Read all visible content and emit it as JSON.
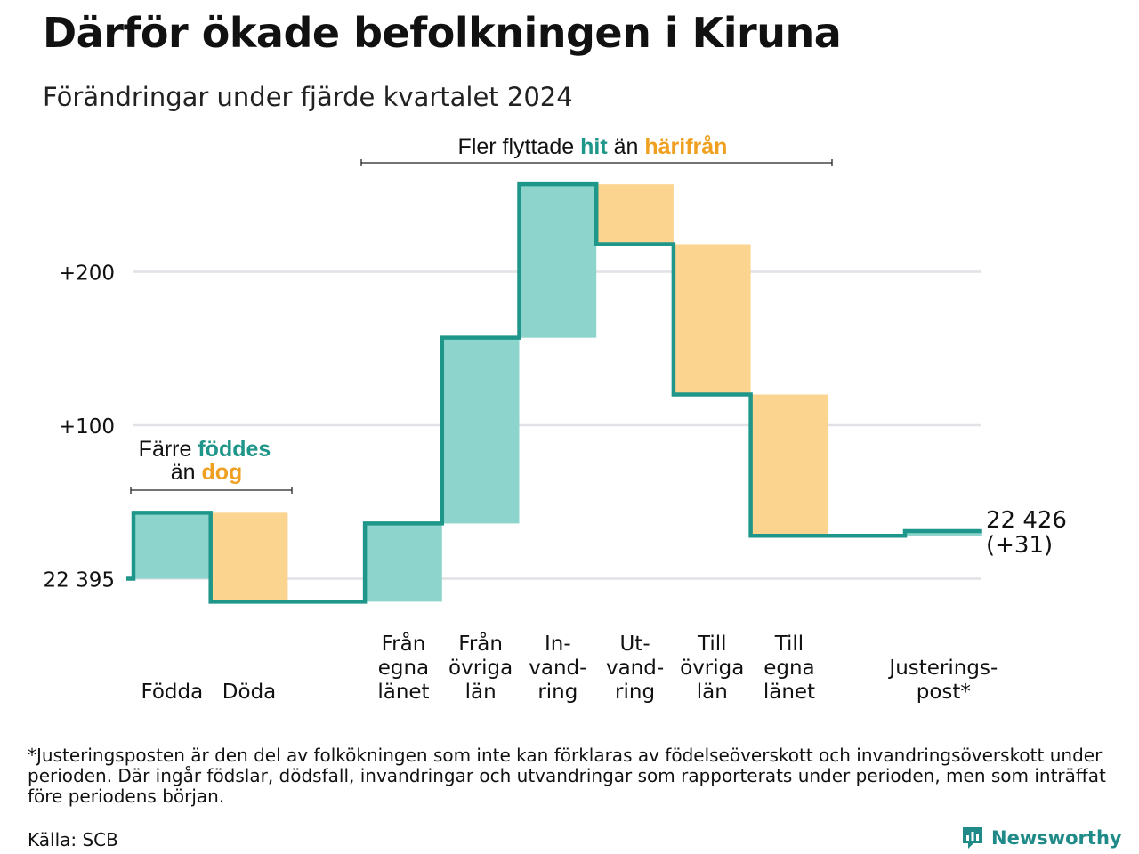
{
  "title": "Därför ökade befolkningen i Kiruna",
  "subtitle": "Förändringar under fjärde kvartalet 2024",
  "footnote": "*Justeringsposten är den del av folkökningen som inte kan förklaras av födelseöverskott och invandringsöverskott under perioden. Där ingår födslar, dödsfall, invandringar och utvandringar som rapporterats under perioden, men som inträffat före periodens början.",
  "source": "Källa: SCB",
  "logo": {
    "text": "Newsworthy",
    "icon": "newsworthy-logo-icon"
  },
  "colors": {
    "positive": "#8dd5cc",
    "negative": "#fbd48f",
    "line": "#1f968a",
    "grid": "#e1e1e6",
    "accent_teal": "#1f968a",
    "accent_orange": "#f0a020"
  },
  "annotations": {
    "births_deaths": {
      "line1_prefix": "Färre ",
      "line1_highlight": "föddes",
      "line2_prefix": "än ",
      "line2_highlight": "dog"
    },
    "migration": {
      "prefix": "Fler flyttade ",
      "highlight1": "hit",
      "middle": " än ",
      "highlight2": "härifrån"
    }
  },
  "chart_data": {
    "type": "waterfall",
    "title": "Därför ökade befolkningen i Kiruna",
    "subtitle": "Förändringar under fjärde kvartalet 2024",
    "start_value": 22395,
    "start_label": "22 395",
    "end_value": 22426,
    "end_label_line1": "22 426",
    "end_label_line2": "(+31)",
    "y_ticks": [
      {
        "value": 0,
        "label": "22 395"
      },
      {
        "value": 100,
        "label": "+100"
      },
      {
        "value": 200,
        "label": "+200"
      }
    ],
    "ylim": [
      -15,
      265
    ],
    "grid": true,
    "steps": [
      {
        "category": [
          "Födda"
        ],
        "start": 0,
        "end": 43,
        "sign": "positive"
      },
      {
        "category": [
          "Döda"
        ],
        "start": 43,
        "end": -15,
        "sign": "negative"
      },
      {
        "category": [
          ""
        ],
        "start": -15,
        "end": -15,
        "sign": "none"
      },
      {
        "category": [
          "Från",
          "egna",
          "länet"
        ],
        "start": -15,
        "end": 36,
        "sign": "positive"
      },
      {
        "category": [
          "Från",
          "övriga",
          "län"
        ],
        "start": 36,
        "end": 157,
        "sign": "positive"
      },
      {
        "category": [
          "In-",
          "vand-",
          "ring"
        ],
        "start": 157,
        "end": 257,
        "sign": "positive"
      },
      {
        "category": [
          "Ut-",
          "vand-",
          "ring"
        ],
        "start": 257,
        "end": 218,
        "sign": "negative"
      },
      {
        "category": [
          "Till",
          "övriga",
          "län"
        ],
        "start": 218,
        "end": 120,
        "sign": "negative"
      },
      {
        "category": [
          "Till",
          "egna",
          "länet"
        ],
        "start": 120,
        "end": 28,
        "sign": "negative"
      },
      {
        "category": [
          ""
        ],
        "start": 28,
        "end": 28,
        "sign": "none"
      },
      {
        "category": [
          "Justerings-",
          "post*"
        ],
        "start": 28,
        "end": 31,
        "sign": "positive"
      }
    ]
  }
}
